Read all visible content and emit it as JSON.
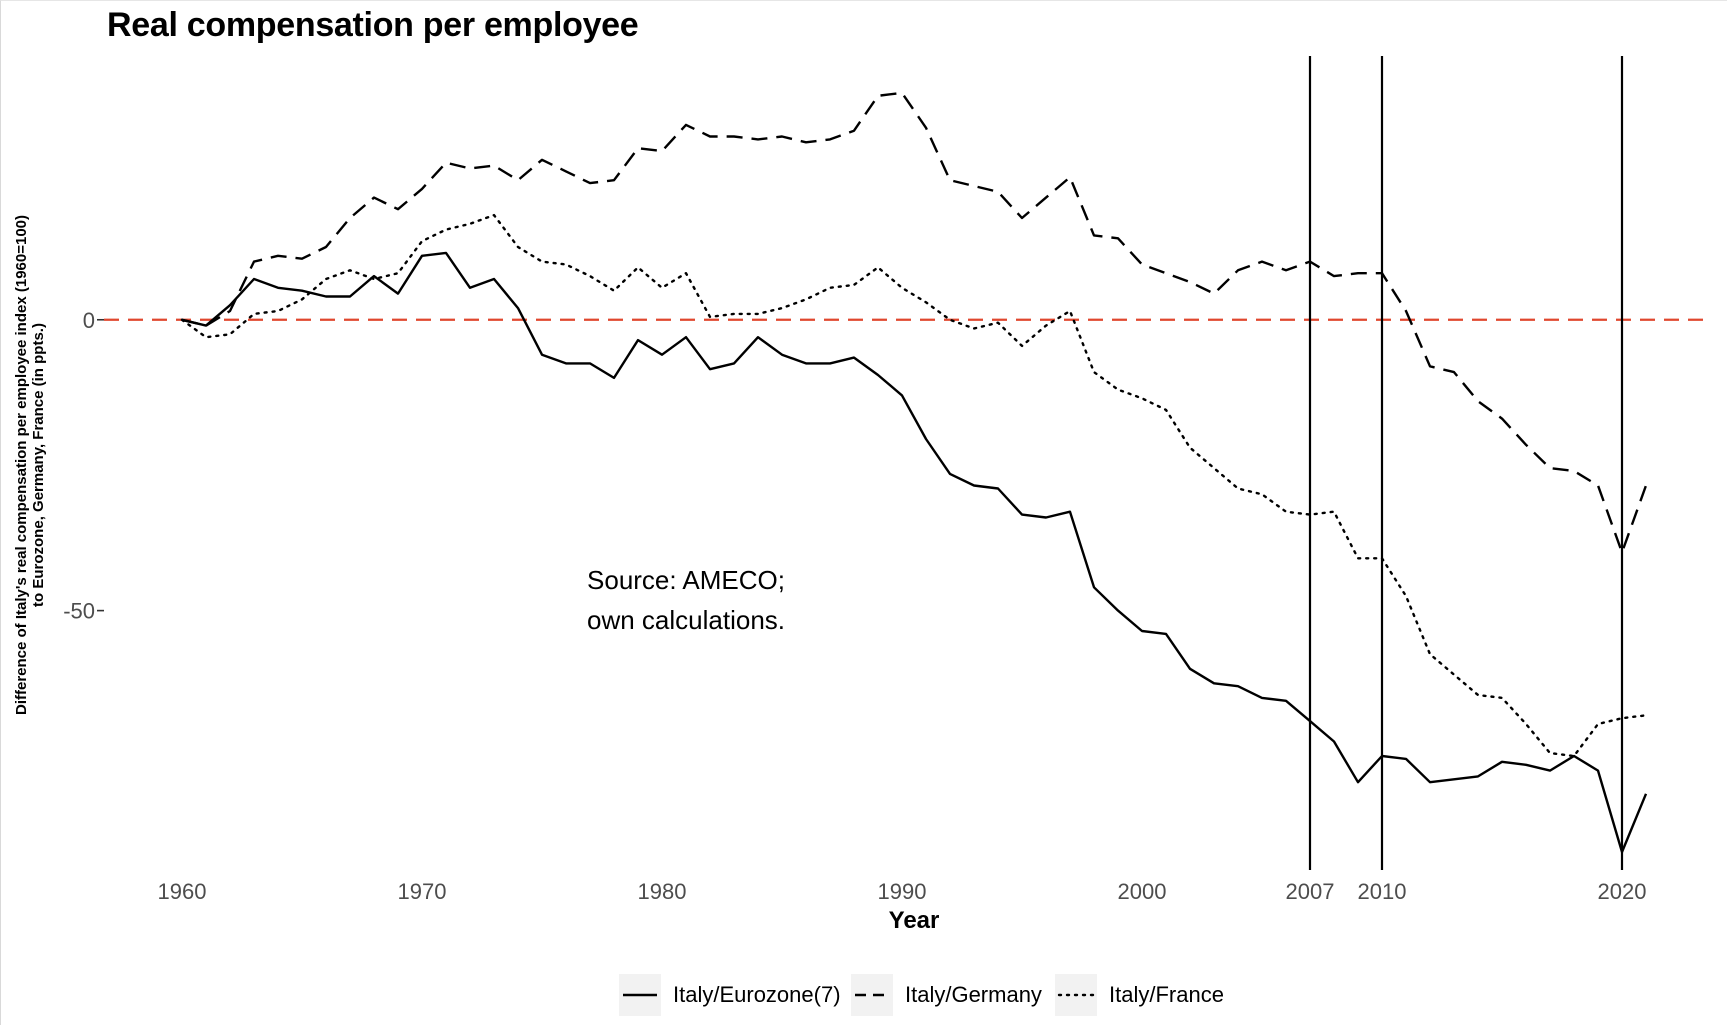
{
  "chart_data": {
    "type": "line",
    "title": "Real compensation per employee",
    "xlabel": "Year",
    "ylabel_lines": [
      "Difference of Italy's real compensation per employee index (1960=100)",
      "to Eurozone, Germany, France (in ppts.)"
    ],
    "xlim": [
      1960,
      2021
    ],
    "ylim": [
      -97,
      45
    ],
    "x_ticks": [
      {
        "value": 1960,
        "label": "1960"
      },
      {
        "value": 1970,
        "label": "1970"
      },
      {
        "value": 1980,
        "label": "1980"
      },
      {
        "value": 1990,
        "label": "1990"
      },
      {
        "value": 2000,
        "label": "2000"
      },
      {
        "value": 2007,
        "label": "2007"
      },
      {
        "value": 2010,
        "label": "2010"
      },
      {
        "value": 2020,
        "label": "2020"
      }
    ],
    "y_ticks": [
      {
        "value": 0,
        "label": "0"
      },
      {
        "value": -50,
        "label": "-50"
      }
    ],
    "grid": false,
    "reference_line": {
      "y": 0,
      "color": "#e0472f",
      "style": "dashed"
    },
    "vertical_lines": [
      2007,
      2010,
      2020
    ],
    "annotation": {
      "x": 1981,
      "y": -50,
      "lines": [
        "Source: AMECO;",
        "own calculations."
      ]
    },
    "legend_position": "bottom",
    "series": [
      {
        "name": "Italy/Eurozone(7)",
        "style": "solid",
        "x": [
          1960,
          1961,
          1962,
          1963,
          1964,
          1965,
          1966,
          1967,
          1968,
          1969,
          1970,
          1971,
          1972,
          1973,
          1974,
          1975,
          1976,
          1977,
          1978,
          1979,
          1980,
          1981,
          1982,
          1983,
          1984,
          1985,
          1986,
          1987,
          1988,
          1989,
          1990,
          1991,
          1992,
          1993,
          1994,
          1995,
          1996,
          1997,
          1998,
          1999,
          2000,
          2001,
          2002,
          2003,
          2004,
          2005,
          2006,
          2007,
          2008,
          2009,
          2010,
          2011,
          2012,
          2013,
          2014,
          2015,
          2016,
          2017,
          2018,
          2019,
          2020,
          2021
        ],
        "values": [
          0,
          -1,
          2.5,
          7,
          5.5,
          5,
          4,
          4,
          7.5,
          4.5,
          11,
          11.5,
          5.5,
          7,
          2,
          -6,
          -7.5,
          -7.5,
          -10,
          -3.5,
          -6,
          -3,
          -8.5,
          -7.5,
          -3,
          -6,
          -7.5,
          -7.5,
          -6.5,
          -9.5,
          -13,
          -20.5,
          -26.5,
          -28.5,
          -29,
          -33.5,
          -34,
          -33,
          -46,
          -50,
          -53.5,
          -54,
          -60,
          -62.5,
          -63,
          -65,
          -65.5,
          -69,
          -72.5,
          -79.5,
          -75,
          -75.5,
          -79.5,
          -79,
          -78.5,
          -76,
          -76.5,
          -77.5,
          -75,
          -77.5,
          -91.5,
          -81.5
        ]
      },
      {
        "name": "Italy/Germany",
        "style": "dashed",
        "x": [
          1960,
          1961,
          1962,
          1963,
          1964,
          1965,
          1966,
          1967,
          1968,
          1969,
          1970,
          1971,
          1972,
          1973,
          1974,
          1975,
          1976,
          1977,
          1978,
          1979,
          1980,
          1981,
          1982,
          1983,
          1984,
          1985,
          1986,
          1987,
          1988,
          1989,
          1990,
          1991,
          1992,
          1993,
          1994,
          1995,
          1996,
          1997,
          1998,
          1999,
          2000,
          2001,
          2002,
          2003,
          2004,
          2005,
          2006,
          2007,
          2008,
          2009,
          2010,
          2011,
          2012,
          2013,
          2014,
          2015,
          2016,
          2017,
          2018,
          2019,
          2020,
          2021
        ],
        "values": [
          0,
          -1,
          1.5,
          10,
          11,
          10.5,
          12.5,
          17.5,
          21,
          19,
          22.5,
          27,
          26,
          26.5,
          24,
          27.5,
          25.5,
          23.5,
          24,
          29.5,
          29,
          33.5,
          31.5,
          31.5,
          31,
          31.5,
          30.5,
          31,
          32.5,
          38.5,
          39,
          33,
          24,
          23,
          22,
          17.5,
          21,
          24.5,
          14.5,
          14,
          9.5,
          8,
          6.5,
          4.5,
          8.5,
          10,
          8.5,
          10,
          7.5,
          8,
          8,
          1.5,
          -8,
          -9,
          -14,
          -17,
          -21.5,
          -25.5,
          -26,
          -28.5,
          -40,
          -28.5
        ]
      },
      {
        "name": "Italy/France",
        "style": "dotted",
        "x": [
          1960,
          1961,
          1962,
          1963,
          1964,
          1965,
          1966,
          1967,
          1968,
          1969,
          1970,
          1971,
          1972,
          1973,
          1974,
          1975,
          1976,
          1977,
          1978,
          1979,
          1980,
          1981,
          1982,
          1983,
          1984,
          1985,
          1986,
          1987,
          1988,
          1989,
          1990,
          1991,
          1992,
          1993,
          1994,
          1995,
          1996,
          1997,
          1998,
          1999,
          2000,
          2001,
          2002,
          2003,
          2004,
          2005,
          2006,
          2007,
          2008,
          2009,
          2010,
          2011,
          2012,
          2013,
          2014,
          2015,
          2016,
          2017,
          2018,
          2019,
          2020,
          2021
        ],
        "values": [
          0,
          -3,
          -2.5,
          1,
          1.5,
          3.5,
          7,
          8.5,
          7,
          8,
          13.5,
          15.5,
          16.5,
          18,
          12.5,
          10,
          9.5,
          7.5,
          5,
          9,
          5.5,
          8,
          0.5,
          1,
          1,
          2,
          3.5,
          5.5,
          6,
          9,
          5.5,
          3,
          0,
          -1.5,
          -0.5,
          -4.5,
          -1,
          1.5,
          -9,
          -12,
          -13.5,
          -15.5,
          -22,
          -25.5,
          -29,
          -30,
          -33,
          -33.5,
          -33,
          -41,
          -41,
          -47.5,
          -57.5,
          -61,
          -64.5,
          -65,
          -69.5,
          -74.5,
          -75,
          -69.5,
          -68.5,
          -68
        ]
      }
    ]
  }
}
